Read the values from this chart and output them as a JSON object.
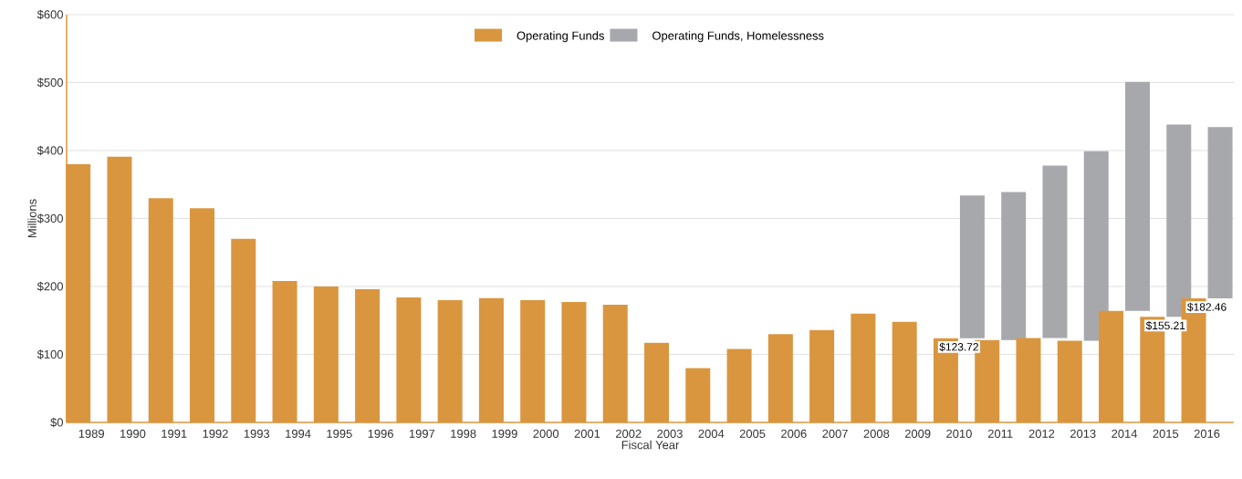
{
  "chart_data": {
    "type": "bar",
    "stacked": true,
    "xlabel": "Fiscal Year",
    "ylabel": "Millions",
    "categories": [
      "1989",
      "1990",
      "1991",
      "1992",
      "1993",
      "1994",
      "1995",
      "1996",
      "1997",
      "1998",
      "1999",
      "2000",
      "2001",
      "2002",
      "2003",
      "2004",
      "2005",
      "2006",
      "2007",
      "2008",
      "2009",
      "2010",
      "2011",
      "2012",
      "2013",
      "2014",
      "2015",
      "2016"
    ],
    "series": [
      {
        "name": "Operating Funds",
        "color": "#d9963f",
        "values": [
          380,
          391,
          330,
          315,
          270,
          208,
          200,
          196,
          184,
          180,
          183,
          180,
          177,
          173,
          117,
          80,
          108,
          130,
          136,
          160,
          148,
          123.72,
          121,
          124,
          120,
          164,
          155.21,
          182.46
        ],
        "value_labels": [
          null,
          null,
          null,
          null,
          null,
          null,
          null,
          null,
          null,
          null,
          null,
          null,
          null,
          null,
          null,
          null,
          null,
          null,
          null,
          null,
          null,
          "$123.72",
          null,
          null,
          null,
          null,
          "$155.21",
          "$182.46"
        ]
      },
      {
        "name": "Operating Funds, Homelessness",
        "color": "#a7a8ac",
        "values": [
          null,
          null,
          null,
          null,
          null,
          null,
          null,
          null,
          null,
          null,
          null,
          null,
          null,
          null,
          null,
          null,
          null,
          null,
          null,
          null,
          null,
          210,
          218,
          254,
          279,
          337,
          283,
          252
        ]
      }
    ],
    "ylim": [
      0,
      600
    ],
    "yticks": [
      {
        "value": 0,
        "label": "$0"
      },
      {
        "value": 100,
        "label": "$100"
      },
      {
        "value": 200,
        "label": "$200"
      },
      {
        "value": 300,
        "label": "$300"
      },
      {
        "value": 400,
        "label": "$400"
      },
      {
        "value": 500,
        "label": "$500"
      },
      {
        "value": 600,
        "label": "$600"
      }
    ],
    "grid": "y",
    "legend": "top"
  }
}
